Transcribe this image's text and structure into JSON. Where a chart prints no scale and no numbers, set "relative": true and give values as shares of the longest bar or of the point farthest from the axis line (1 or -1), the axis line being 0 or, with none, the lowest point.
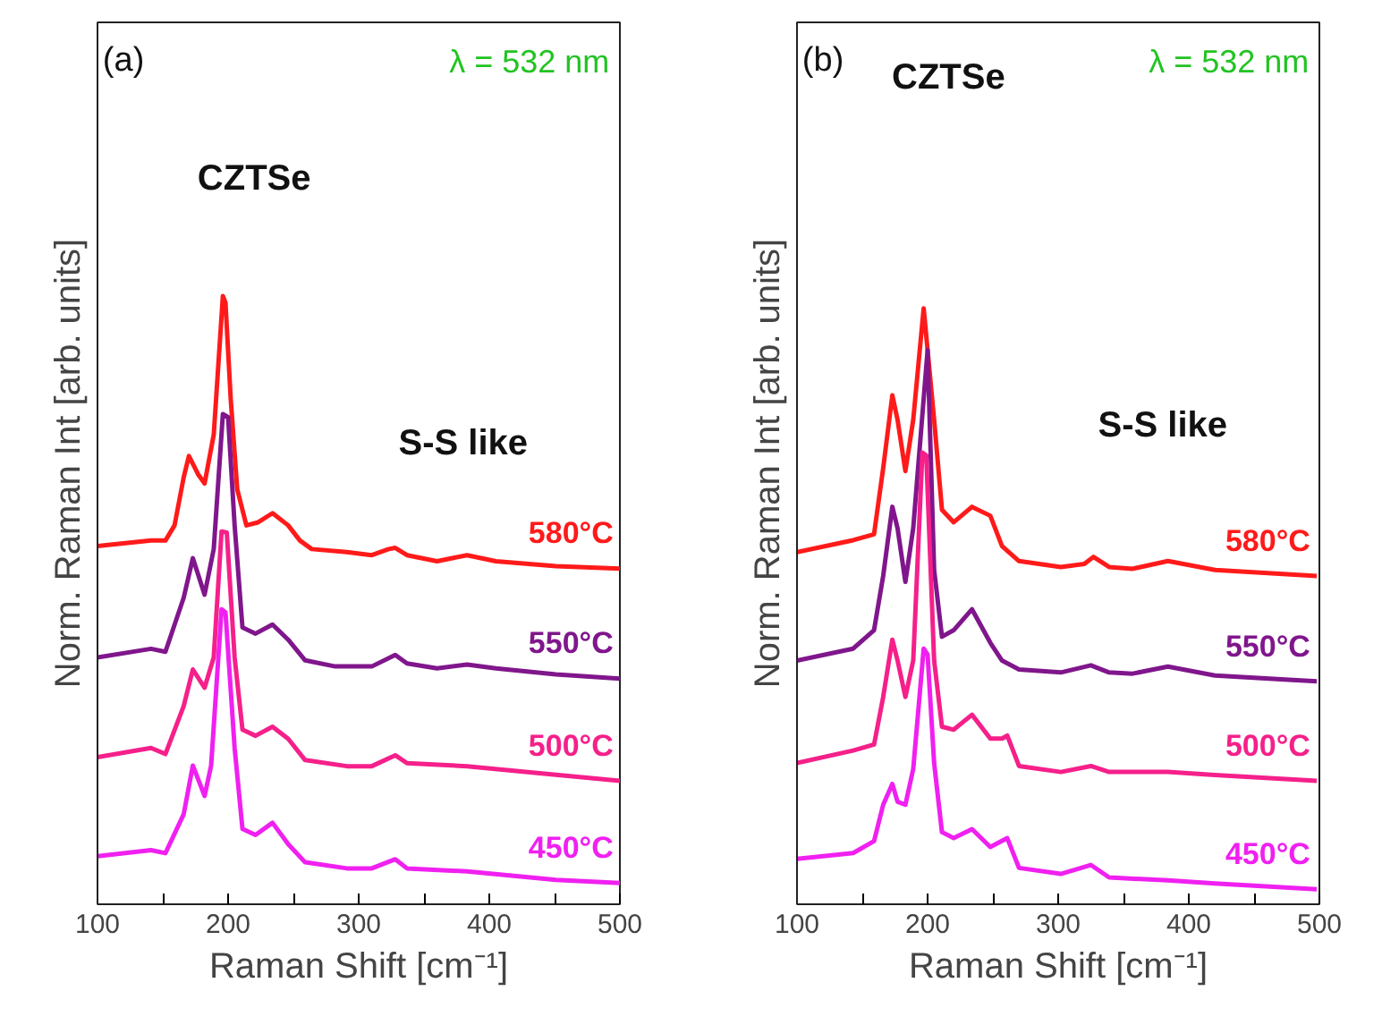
{
  "chart_data": [
    {
      "type": "line",
      "relative": true,
      "xlabel": "Raman Shift [cm⁻¹]",
      "ylabel": "Norm. Raman Int [arb. units]",
      "xlim": [
        100,
        500
      ],
      "xticks": [
        100,
        {
          "value": 150,
          "label": null
        },
        200,
        {
          "value": 250,
          "label": null
        },
        300,
        {
          "value": 350,
          "label": null
        },
        400,
        {
          "value": 450,
          "label": null
        },
        500
      ],
      "tick_labels": "x",
      "grid": false,
      "legend": false,
      "annotations": [
        "(a)",
        "λ = 532 nm",
        "CZTSe",
        "S-S like"
      ],
      "series": [
        {
          "name": "580°C",
          "color": "#ff1a1a",
          "x": [
            100,
            141,
            152,
            159,
            166,
            170,
            177,
            182,
            189,
            196,
            198,
            202,
            207,
            214,
            223,
            234,
            246,
            255,
            264,
            291,
            310,
            323,
            328,
            337,
            360,
            383,
            405,
            451,
            500
          ],
          "values": [
            0.589,
            0.598,
            0.598,
            0.623,
            0.702,
            0.737,
            0.707,
            0.692,
            0.772,
            1.0,
            0.989,
            0.831,
            0.682,
            0.623,
            0.628,
            0.643,
            0.623,
            0.598,
            0.584,
            0.579,
            0.574,
            0.584,
            0.586,
            0.574,
            0.564,
            0.574,
            0.564,
            0.556,
            0.552
          ]
        },
        {
          "name": "550°C",
          "color": "#80168c",
          "x": [
            100,
            141,
            152,
            166,
            173,
            182,
            189,
            196,
            200,
            205,
            211,
            221,
            234,
            246,
            259,
            282,
            310,
            328,
            337,
            360,
            383,
            405,
            451,
            500
          ],
          "values": [
            0.406,
            0.42,
            0.415,
            0.504,
            0.569,
            0.509,
            0.584,
            0.806,
            0.801,
            0.623,
            0.455,
            0.445,
            0.46,
            0.435,
            0.401,
            0.391,
            0.391,
            0.41,
            0.396,
            0.388,
            0.394,
            0.388,
            0.378,
            0.371
          ]
        },
        {
          "name": "500°C",
          "color": "#f5208a",
          "x": [
            100,
            141,
            152,
            166,
            173,
            182,
            189,
            195,
            199,
            205,
            211,
            221,
            234,
            246,
            259,
            291,
            310,
            328,
            337,
            383,
            451,
            500
          ],
          "values": [
            0.242,
            0.257,
            0.247,
            0.326,
            0.386,
            0.356,
            0.406,
            0.613,
            0.611,
            0.406,
            0.287,
            0.277,
            0.292,
            0.272,
            0.237,
            0.227,
            0.227,
            0.245,
            0.232,
            0.227,
            0.213,
            0.203
          ]
        },
        {
          "name": "450°C",
          "color": "#f020f0",
          "x": [
            100,
            141,
            152,
            166,
            173,
            182,
            187,
            195,
            198,
            205,
            211,
            221,
            234,
            246,
            259,
            291,
            310,
            328,
            337,
            383,
            451,
            500
          ],
          "values": [
            0.079,
            0.089,
            0.084,
            0.148,
            0.228,
            0.178,
            0.228,
            0.485,
            0.48,
            0.257,
            0.124,
            0.114,
            0.134,
            0.099,
            0.069,
            0.059,
            0.059,
            0.074,
            0.059,
            0.054,
            0.04,
            0.035
          ]
        }
      ]
    },
    {
      "type": "line",
      "relative": true,
      "xlabel": "Raman Shift [cm⁻¹]",
      "ylabel": "Norm. Raman Int [arb. units]",
      "xlim": [
        100,
        500
      ],
      "xticks": [
        100,
        {
          "value": 150,
          "label": null
        },
        200,
        {
          "value": 250,
          "label": null
        },
        300,
        {
          "value": 350,
          "label": null
        },
        400,
        {
          "value": 450,
          "label": null
        },
        500
      ],
      "tick_labels": "x",
      "grid": false,
      "legend": false,
      "annotations": [
        "(b)",
        "λ = 532 nm",
        "CZTSe",
        "S-S like"
      ],
      "series": [
        {
          "name": "580°C",
          "color": "#ff1a1a",
          "x": [
            100,
            143,
            159,
            166,
            173,
            177,
            183,
            189,
            197,
            205,
            211,
            220,
            234,
            248,
            257,
            270,
            302,
            320,
            327,
            339,
            357,
            384,
            420,
            498
          ],
          "values": [
            0.591,
            0.611,
            0.621,
            0.732,
            0.854,
            0.813,
            0.727,
            0.813,
            1.0,
            0.813,
            0.662,
            0.641,
            0.667,
            0.652,
            0.601,
            0.576,
            0.566,
            0.571,
            0.583,
            0.566,
            0.563,
            0.576,
            0.561,
            0.551
          ]
        },
        {
          "name": "550°C",
          "color": "#80168c",
          "x": [
            100,
            143,
            159,
            166,
            173,
            177,
            183,
            189,
            200,
            205,
            211,
            220,
            234,
            248,
            257,
            270,
            302,
            325,
            339,
            357,
            384,
            420,
            498
          ],
          "values": [
            0.409,
            0.429,
            0.46,
            0.551,
            0.667,
            0.631,
            0.541,
            0.631,
            0.93,
            0.561,
            0.449,
            0.46,
            0.495,
            0.439,
            0.409,
            0.394,
            0.389,
            0.401,
            0.389,
            0.387,
            0.399,
            0.384,
            0.374
          ]
        },
        {
          "name": "500°C",
          "color": "#f5208a",
          "x": [
            100,
            143,
            159,
            166,
            173,
            177,
            183,
            189,
            196,
            199,
            205,
            211,
            220,
            234,
            248,
            257,
            261,
            270,
            302,
            325,
            339,
            384,
            420,
            498
          ],
          "values": [
            0.237,
            0.258,
            0.268,
            0.348,
            0.444,
            0.409,
            0.348,
            0.409,
            0.758,
            0.753,
            0.409,
            0.298,
            0.293,
            0.318,
            0.278,
            0.278,
            0.283,
            0.232,
            0.222,
            0.232,
            0.222,
            0.222,
            0.217,
            0.207
          ]
        },
        {
          "name": "450°C",
          "color": "#f020f0",
          "x": [
            100,
            143,
            159,
            166,
            173,
            177,
            183,
            189,
            197,
            200,
            205,
            211,
            220,
            234,
            248,
            261,
            270,
            302,
            325,
            339,
            384,
            420,
            498
          ],
          "values": [
            0.076,
            0.086,
            0.106,
            0.167,
            0.202,
            0.172,
            0.167,
            0.227,
            0.429,
            0.419,
            0.237,
            0.121,
            0.111,
            0.126,
            0.096,
            0.111,
            0.061,
            0.051,
            0.066,
            0.045,
            0.04,
            0.035,
            0.025
          ]
        }
      ]
    }
  ]
}
